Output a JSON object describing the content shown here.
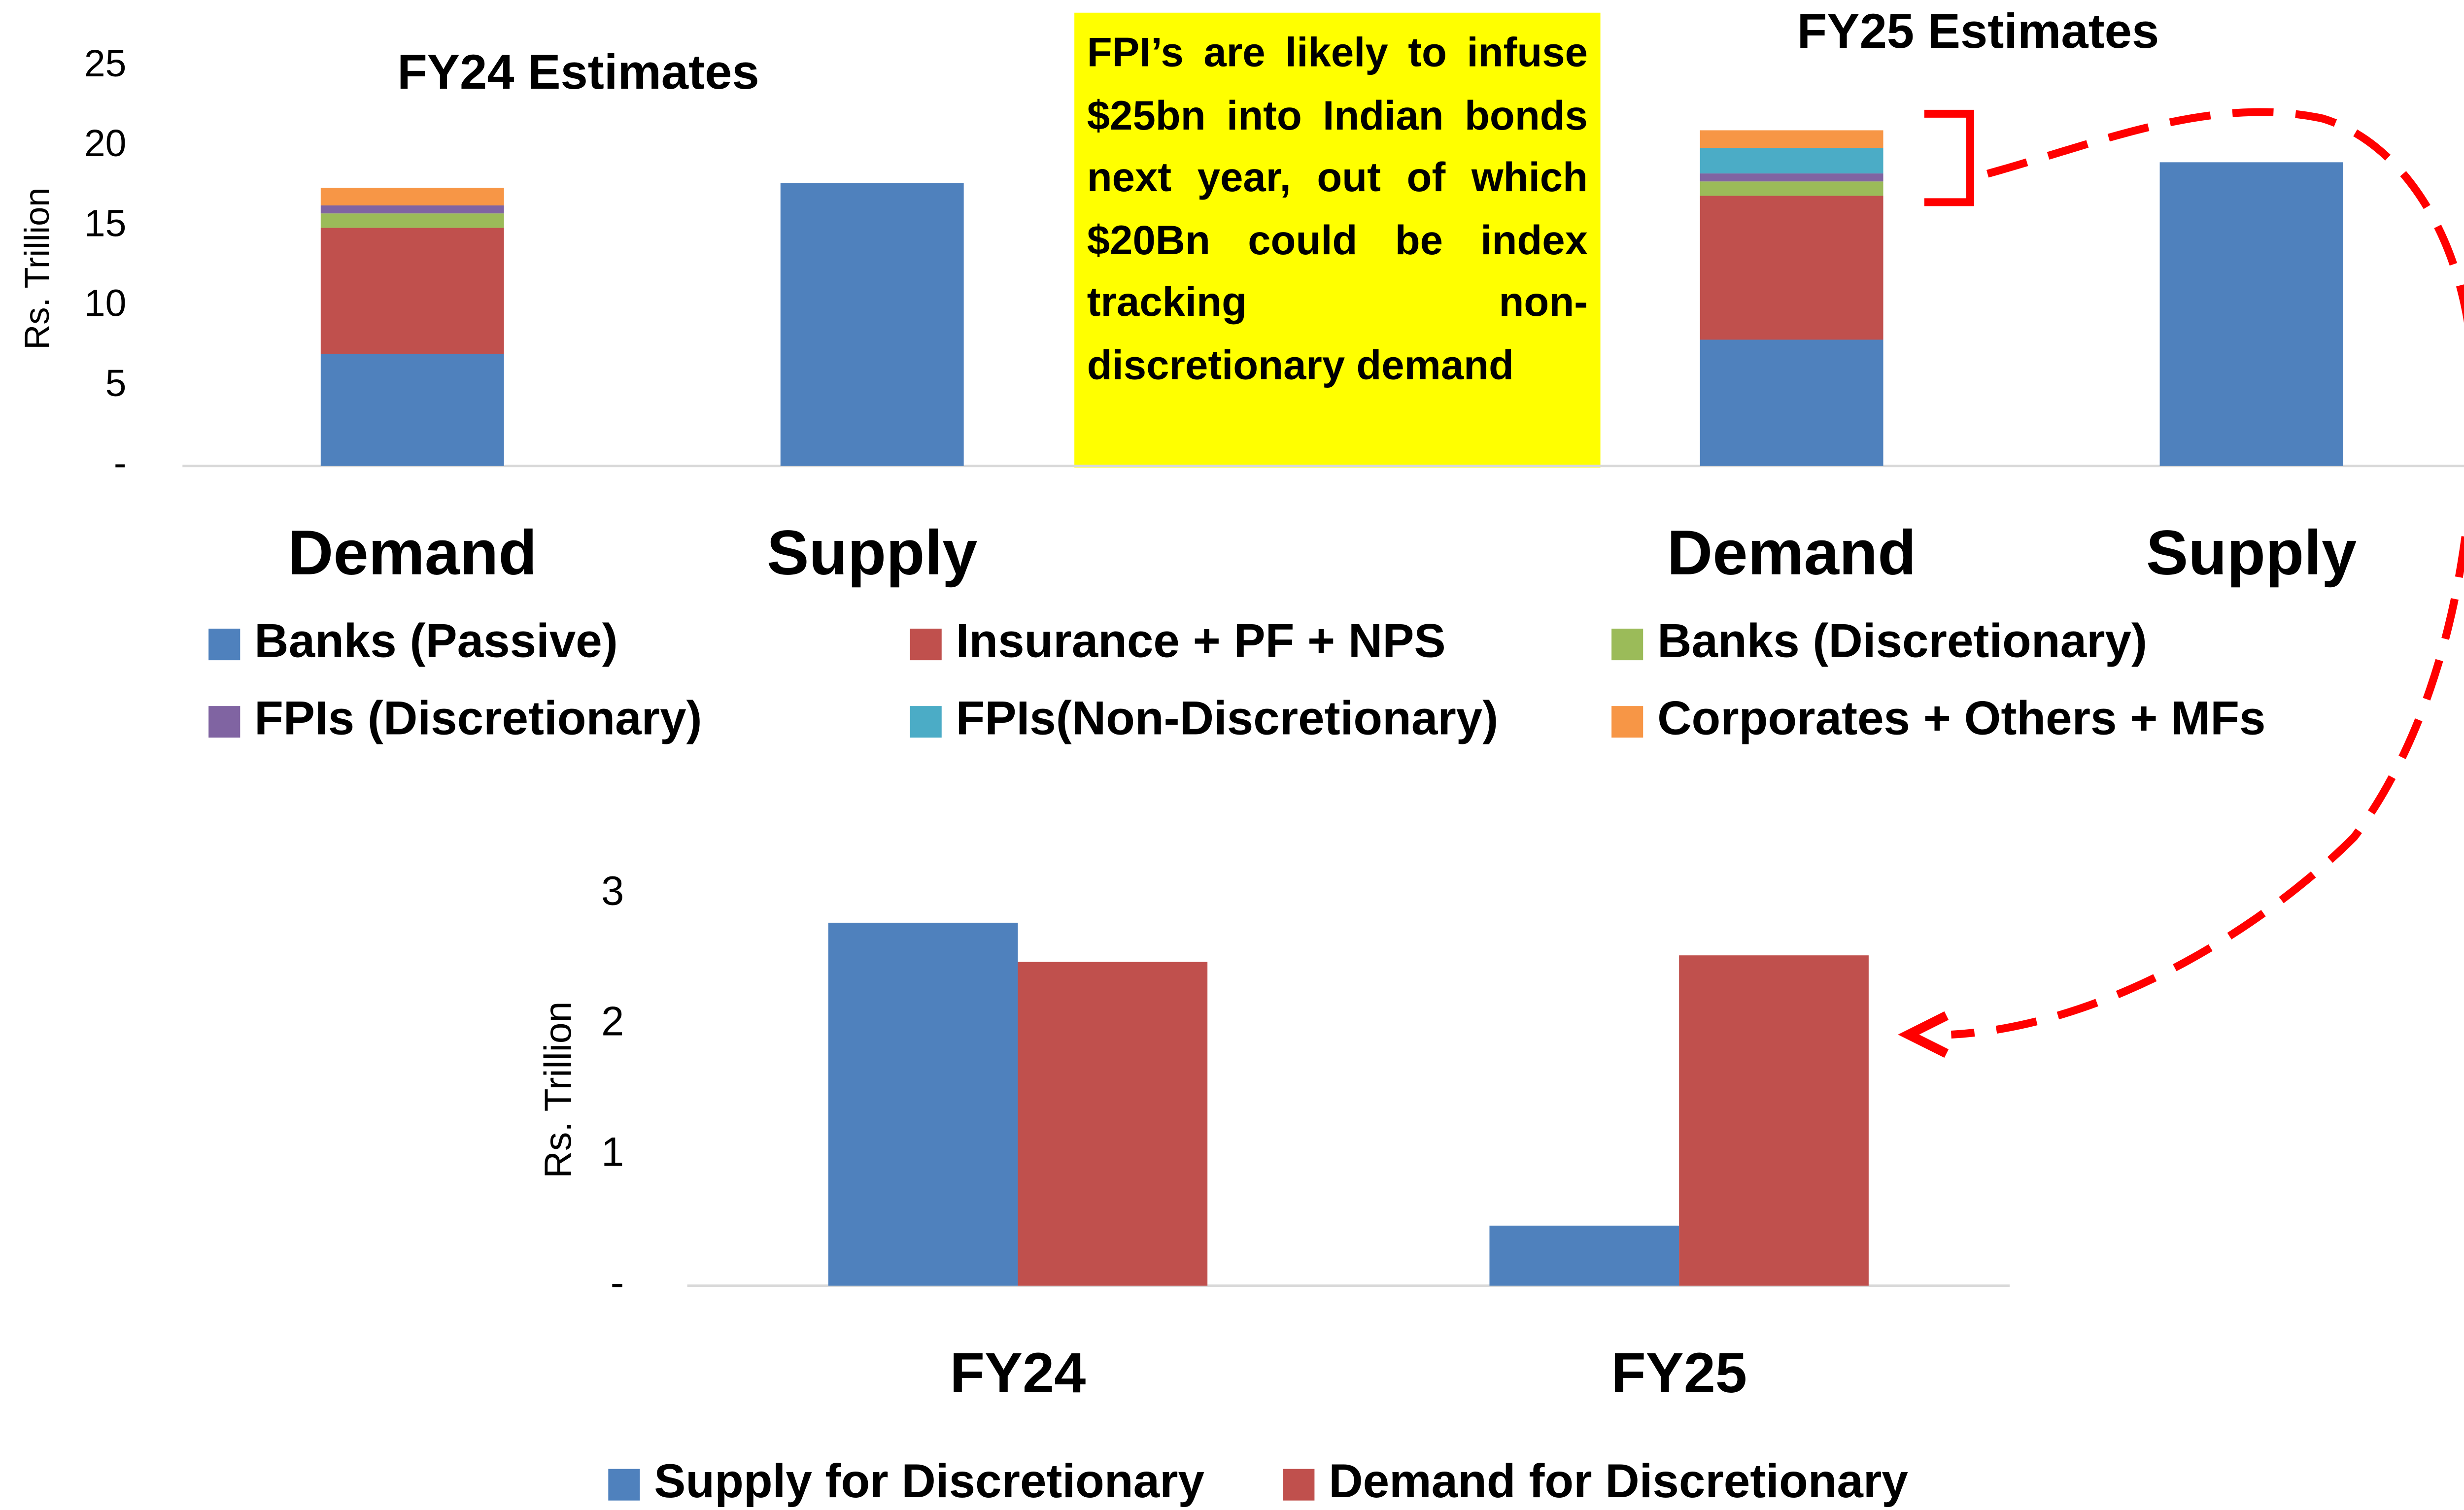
{
  "chart_data": [
    {
      "type": "stacked_bar",
      "annotations": [
        "FY24 Estimates",
        "FY25 Estimates"
      ],
      "note": "FPI’s are likely to infuse $25bn into Indian bonds next year, out of which $20Bn could be index tracking non-discretionary demand",
      "ylabel": "Rs. Trillion",
      "categories": [
        "Demand",
        "Supply",
        null,
        "Demand",
        "Supply"
      ],
      "series": [
        {
          "name": "Banks (Passive)",
          "color": "#4f81bd",
          "values": [
            7.0,
            17.7,
            null,
            7.9,
            19.0
          ]
        },
        {
          "name": "Insurance + PF + NPS",
          "color": "#c0504d",
          "values": [
            7.9,
            null,
            null,
            9.0,
            null
          ]
        },
        {
          "name": "Banks (Discretionary)",
          "color": "#9bbb59",
          "values": [
            0.9,
            null,
            null,
            0.9,
            null
          ]
        },
        {
          "name": "FPIs (Discretionary)",
          "color": "#8064a2",
          "values": [
            0.5,
            null,
            null,
            0.5,
            null
          ]
        },
        {
          "name": "FPIs(Non-Discretionary)",
          "color": "#4bacc6",
          "values": [
            0,
            null,
            null,
            1.6,
            null
          ]
        },
        {
          "name": "Corporates + Others + MFs",
          "color": "#f79646",
          "values": [
            1.1,
            null,
            null,
            1.1,
            null
          ]
        }
      ],
      "ylim": [
        0,
        25
      ],
      "yticks": [
        {
          "value": 0,
          "label": "-"
        },
        5,
        10,
        15,
        20,
        25
      ]
    },
    {
      "type": "grouped_bar",
      "ylabel": "Rs. Trillion",
      "categories": [
        "FY24",
        "FY25"
      ],
      "series": [
        {
          "name": "Supply for Discretionary",
          "color": "#4f81bd",
          "values": [
            2.78,
            0.46
          ]
        },
        {
          "name": "Demand for Discretionary",
          "color": "#c0504d",
          "values": [
            2.48,
            2.53
          ]
        }
      ],
      "ylim": [
        0,
        3
      ],
      "yticks": [
        {
          "value": 0,
          "label": "-"
        },
        1,
        2,
        3
      ]
    }
  ]
}
